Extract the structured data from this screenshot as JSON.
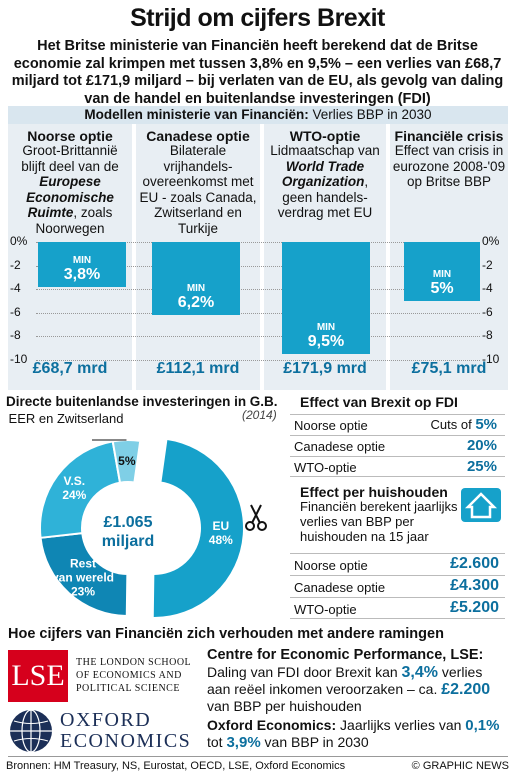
{
  "title": "Strijd om cijfers Brexit",
  "intro": "Het Britse ministerie van Financiën heeft berekend dat de Britse economie zal krimpen met tussen 3,8% en 9,5% – een verlies van £68,7 miljard tot £171,9 miljard – bij verlaten van de EU, als gevolg van daling van de handel en buitenlandse investeringen (FDI)",
  "models_band": {
    "bold": "Modellen ministerie van Financiën:",
    "rest": " Verlies BBP in 2030"
  },
  "panels": [
    {
      "title": "Noorse optie",
      "desc_before": "Groot-Brittannië blijft deel van de ",
      "desc_em": "Europese Economische Ruimte",
      "desc_after": ", zoals Noorwegen",
      "money": "£68,7 mrd"
    },
    {
      "title": "Canadese optie",
      "desc_before": "Bilaterale vrijhandels-overeenkomst met EU - zoals Canada, Zwitserland en Turkije",
      "desc_em": "",
      "desc_after": "",
      "money": "£112,1 mrd"
    },
    {
      "title": "WTO-optie",
      "desc_before": "Lidmaatschap van ",
      "desc_em": "World Trade Organization",
      "desc_after": ", geen handels-verdrag met EU",
      "money": "£171,9 mrd"
    },
    {
      "title": "Financiële crisis",
      "desc_before": "Effect van crisis in eurozone 2008-'09 op Britse BBP",
      "desc_em": "",
      "desc_after": "",
      "money": "£75,1 mrd"
    }
  ],
  "chart_data": [
    {
      "type": "bar",
      "categories": [
        "Noorse optie",
        "Canadese optie",
        "WTO-optie",
        "Financiële crisis"
      ],
      "values": [
        -3.8,
        -6.2,
        -9.5,
        -5.0
      ],
      "bar_labels": [
        [
          "MIN",
          "3,8%"
        ],
        [
          "MIN",
          "6,2%"
        ],
        [
          "MIN",
          "9,5%"
        ],
        [
          "MIN",
          "5%"
        ]
      ],
      "ytick_labels": [
        "0%",
        "-2",
        "-4",
        "-6",
        "-8",
        "-10"
      ],
      "yticks": [
        0,
        -2,
        -4,
        -6,
        -8,
        -10
      ],
      "ylim": [
        -10,
        0
      ],
      "grid": true,
      "color": "#16a1ca"
    },
    {
      "type": "pie",
      "title": "Directe buitenlandse investeringen in G.B.",
      "subtitle": "(2014)",
      "center_value": "£1.065",
      "center_unit": "miljard",
      "slices": [
        {
          "label": "EU",
          "value": 48,
          "value_label": "48%",
          "color": "#16a1ca"
        },
        {
          "label": "Rest van wereld",
          "value": 23,
          "value_label": "23%",
          "color": "#0f86b4"
        },
        {
          "label": "V.S.",
          "value": 24,
          "value_label": "24%",
          "color": "#2fb2d8"
        },
        {
          "label": "EER en Zwitserland",
          "value": 5,
          "value_label": "5%",
          "color": "#7fcfe6"
        }
      ]
    }
  ],
  "fdi_effect": {
    "title": "Effect van Brexit op FDI",
    "rows": [
      {
        "label": "Noorse optie",
        "prefix": "Cuts of ",
        "value": "5%"
      },
      {
        "label": "Canadese optie",
        "prefix": "",
        "value": "20%"
      },
      {
        "label": "WTO-optie",
        "prefix": "",
        "value": "25%"
      }
    ]
  },
  "household": {
    "title": "Effect per huishouden",
    "desc": "Financiën berekent jaarlijks verlies van BBP per huishouden na 15 jaar",
    "rows": [
      {
        "label": "Noorse optie",
        "value": "£2.600"
      },
      {
        "label": "Canadese optie",
        "value": "£4.300"
      },
      {
        "label": "WTO-optie",
        "value": "£5.200"
      }
    ]
  },
  "compare_title": "Hoe cijfers van Financiën zich verhouden met andere ramingen",
  "lse": {
    "logo": "LSE",
    "name_line1": "THE LONDON SCHOOL",
    "name_line2": "OF ECONOMICS AND",
    "name_line3": "POLITICAL SCIENCE"
  },
  "oxford": {
    "logo_line1": "OXFORD",
    "logo_line2": "ECONOMICS"
  },
  "cep": {
    "title": "Centre for Economic Performance, LSE:",
    "t1": "Daling van FDI door Brexit kan ",
    "v1": "3,4%",
    "t2": " verlies aan reëel inkomen veroorzaken – ca. ",
    "v2": "£2.200",
    "t3": " van BBP per huishouden"
  },
  "oe": {
    "title": "Oxford Economics:",
    "t1": " Jaarlijks verlies van ",
    "v1": "0,1%",
    "t2": " tot ",
    "v2": "3,9%",
    "t3": " van BBP in 2030"
  },
  "sources": "Bronnen: HM Treasury, NS, Eurostat, OECD, LSE, Oxford Economics",
  "credit": "© GRAPHIC NEWS",
  "colors": {
    "accent": "#16a1ca",
    "text_blue": "#0c6f9e",
    "panel_bg": "#e8eef3",
    "band_bg": "#d9e6ef",
    "lse_red": "#d6001c",
    "oxford_navy": "#1c2f57"
  }
}
